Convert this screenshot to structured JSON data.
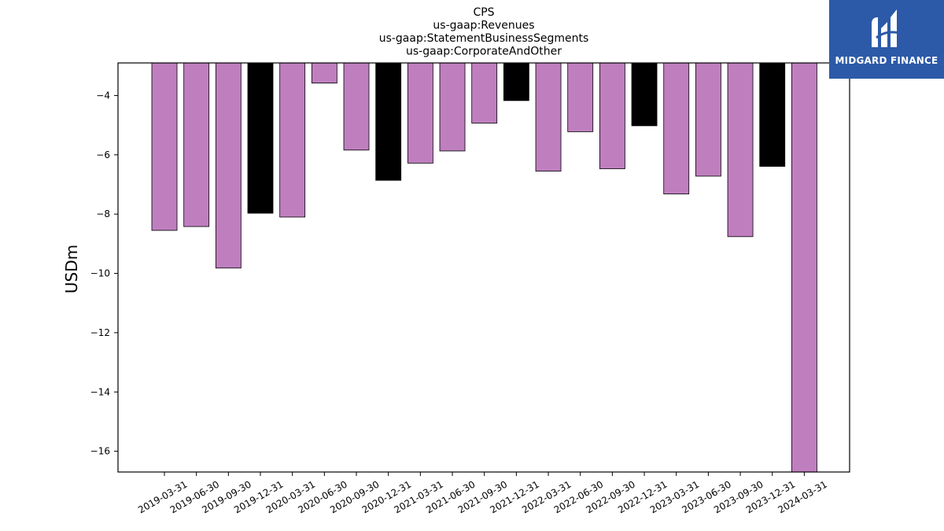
{
  "chart_data": {
    "type": "bar",
    "title_lines": [
      "CPS",
      "us-gaap:Revenues",
      "us-gaap:StatementBusinessSegments",
      "us-gaap:CorporateAndOther"
    ],
    "xlabel": "",
    "ylabel": "USDm",
    "ylim": [
      -16.7,
      -2.9
    ],
    "yticks": [
      -4,
      -6,
      -8,
      -10,
      -12,
      -14,
      -16
    ],
    "categories": [
      "2019-03-31",
      "2019-06-30",
      "2019-09-30",
      "2019-12-31",
      "2020-03-31",
      "2020-06-30",
      "2020-09-30",
      "2020-12-31",
      "2021-03-31",
      "2021-06-30",
      "2021-09-30",
      "2021-12-31",
      "2022-03-31",
      "2022-06-30",
      "2022-09-30",
      "2022-12-31",
      "2023-03-31",
      "2023-06-30",
      "2023-09-30",
      "2023-12-31",
      "2024-03-31"
    ],
    "values": [
      -8.55,
      -8.42,
      -9.82,
      -7.97,
      -8.1,
      -3.58,
      -5.84,
      -6.86,
      -6.28,
      -5.87,
      -4.93,
      -4.17,
      -6.55,
      -5.22,
      -6.47,
      -5.02,
      -7.32,
      -6.72,
      -8.76,
      -6.39,
      -16.7
    ],
    "colors": [
      "#bf7fbf",
      "#bf7fbf",
      "#bf7fbf",
      "#000000",
      "#bf7fbf",
      "#bf7fbf",
      "#bf7fbf",
      "#000000",
      "#bf7fbf",
      "#bf7fbf",
      "#bf7fbf",
      "#000000",
      "#bf7fbf",
      "#bf7fbf",
      "#bf7fbf",
      "#000000",
      "#bf7fbf",
      "#bf7fbf",
      "#bf7fbf",
      "#000000",
      "#bf7fbf"
    ],
    "grid": false,
    "legend": "none"
  },
  "logo": {
    "text": "MIDGARD FINANCE",
    "icon": "midgard-logo-icon",
    "background": "#2c5aa8"
  }
}
